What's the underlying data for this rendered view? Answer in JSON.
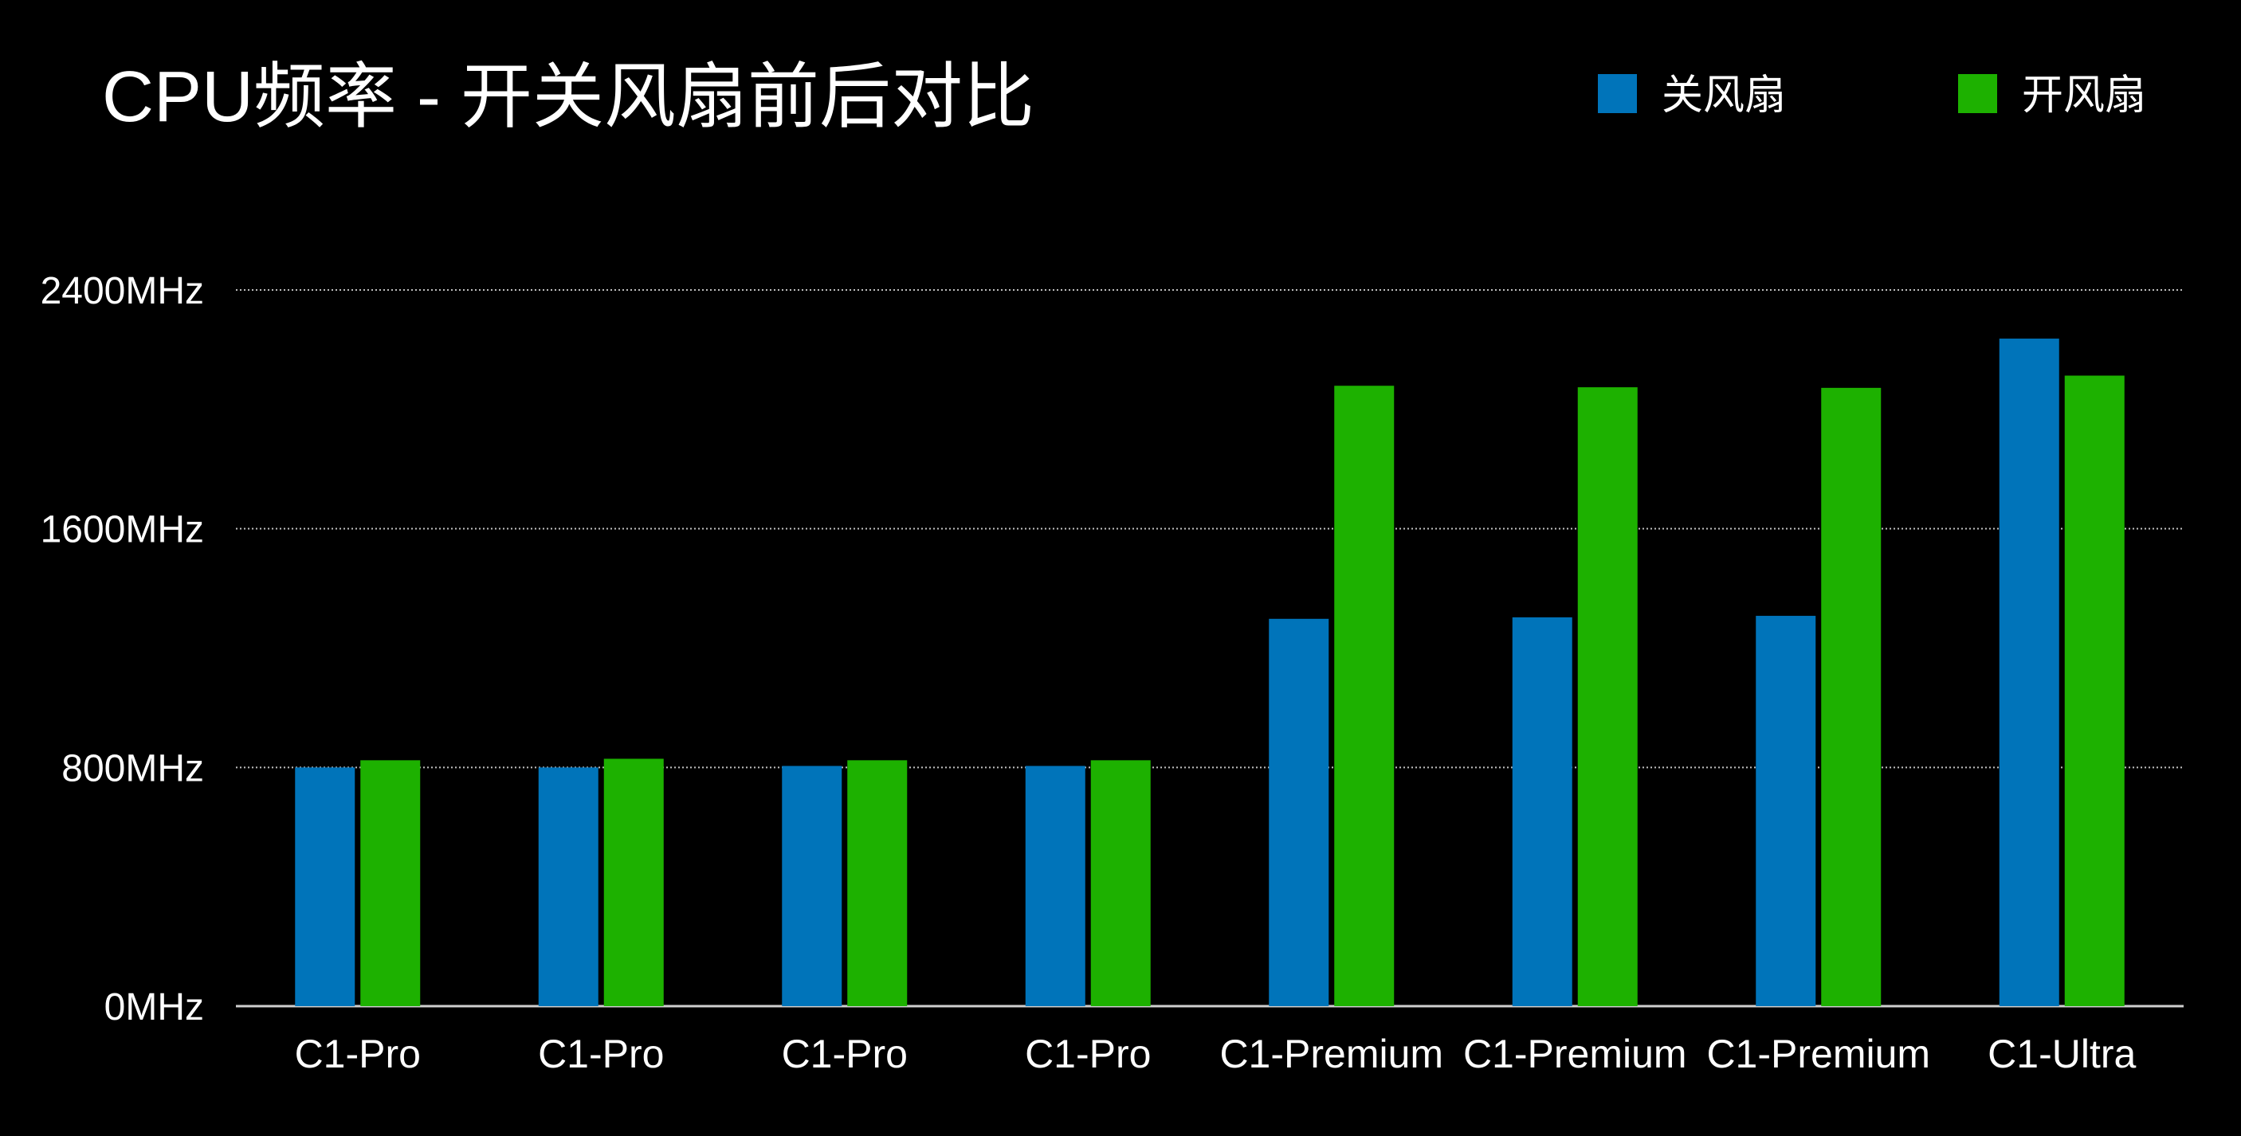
{
  "chart_data": {
    "type": "bar",
    "title": "CPU频率 - 开关风扇前后对比",
    "categories": [
      "C1-Pro",
      "C1-Pro",
      "C1-Pro",
      "C1-Pro",
      "C1-Premium",
      "C1-Premium",
      "C1-Premium",
      "C1-Ultra"
    ],
    "series": [
      {
        "name": "关风扇",
        "color": "#0074BA",
        "values": [
          800,
          800,
          805,
          805,
          1298,
          1303,
          1308,
          2237
        ]
      },
      {
        "name": "开风扇",
        "color": "#1DB100",
        "values": [
          824,
          829,
          824,
          824,
          2079,
          2074,
          2072,
          2113
        ]
      }
    ],
    "ylim": [
      0,
      2400
    ],
    "yticks": [
      0,
      800,
      1600,
      2400
    ],
    "ytick_labels": [
      "0MHz",
      "800MHz",
      "1600MHz",
      "2400MHz"
    ],
    "xlabel": "",
    "ylabel": "",
    "grid": true,
    "legend_position": "top-right",
    "background": "#000000"
  }
}
